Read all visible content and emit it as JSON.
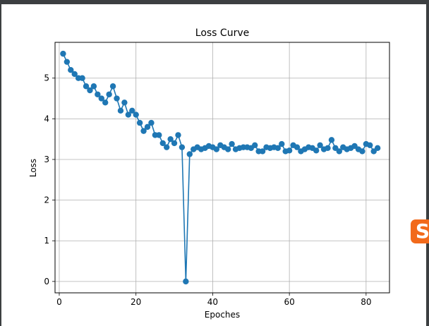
{
  "chart_data": {
    "type": "line",
    "title": "Loss Curve",
    "xlabel": "Epoches",
    "ylabel": "Loss",
    "xlim": [
      -1.1,
      86.1
    ],
    "ylim": [
      -0.28,
      5.88
    ],
    "xticks": [
      0,
      20,
      40,
      60,
      80
    ],
    "yticks": [
      0,
      1,
      2,
      3,
      4,
      5
    ],
    "grid": true,
    "marker": "circle",
    "color": "#1f77b4",
    "series": [
      {
        "x": [
          1,
          2,
          3,
          4,
          5,
          6,
          7,
          8,
          9,
          10,
          11,
          12,
          13,
          14,
          15,
          16,
          17,
          18,
          19,
          20,
          21,
          22,
          23,
          24,
          25,
          26,
          27,
          28,
          29,
          30,
          31,
          32,
          33,
          34,
          35,
          36,
          37,
          38,
          39,
          40,
          41,
          42,
          43,
          44,
          45,
          46,
          47,
          48,
          49,
          50,
          51,
          52,
          53,
          54,
          55,
          56,
          57,
          58,
          59,
          60,
          61,
          62,
          63,
          64,
          65,
          66,
          67,
          68,
          69,
          70,
          71,
          72,
          73,
          74,
          75,
          76,
          77,
          78,
          79,
          80,
          81,
          82,
          83
        ],
        "values": [
          5.6,
          5.4,
          5.2,
          5.1,
          5.0,
          5.0,
          4.8,
          4.7,
          4.8,
          4.6,
          4.5,
          4.4,
          4.6,
          4.8,
          4.5,
          4.2,
          4.4,
          4.1,
          4.2,
          4.1,
          3.9,
          3.7,
          3.8,
          3.9,
          3.6,
          3.6,
          3.4,
          3.3,
          3.5,
          3.4,
          3.6,
          3.3,
          0.0,
          3.13,
          3.25,
          3.3,
          3.25,
          3.28,
          3.33,
          3.3,
          3.25,
          3.35,
          3.3,
          3.25,
          3.38,
          3.25,
          3.28,
          3.3,
          3.3,
          3.28,
          3.35,
          3.2,
          3.2,
          3.3,
          3.28,
          3.3,
          3.28,
          3.38,
          3.2,
          3.22,
          3.35,
          3.3,
          3.2,
          3.25,
          3.3,
          3.28,
          3.22,
          3.35,
          3.25,
          3.28,
          3.48,
          3.28,
          3.2,
          3.3,
          3.25,
          3.28,
          3.33,
          3.25,
          3.2,
          3.38,
          3.35,
          3.2,
          3.28
        ]
      }
    ]
  },
  "watermark": {
    "glyph": "S",
    "color": "#f26a1b"
  }
}
